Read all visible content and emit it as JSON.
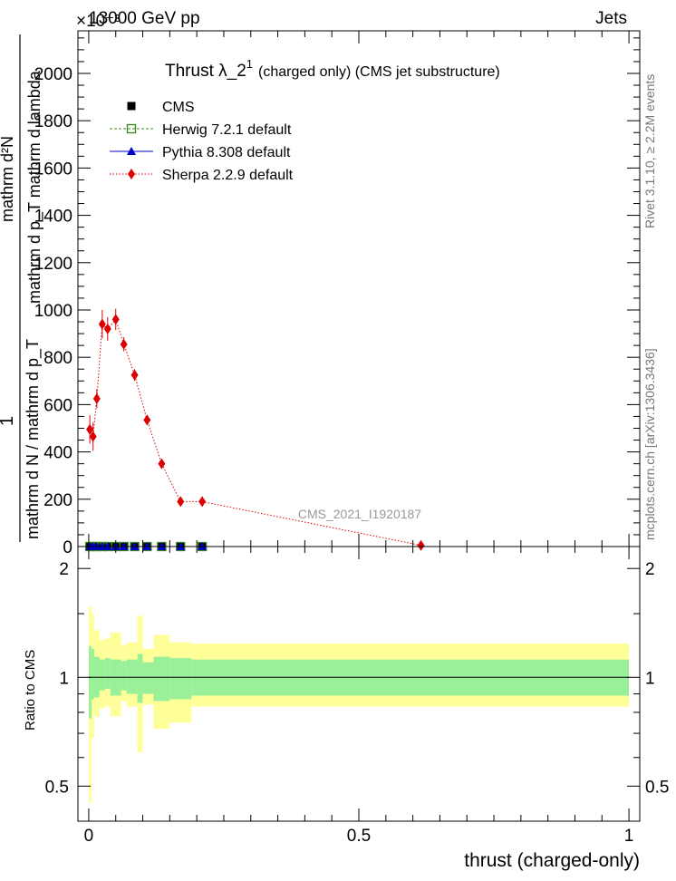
{
  "header": {
    "left": "13000 GeV pp",
    "right": "Jets",
    "exponent": "×10⁻³"
  },
  "side_labels": {
    "rivet": "Rivet 3.1.10, ≥ 2.2M events",
    "mcplots": "mcplots.cern.ch [arXiv:1306.3436]"
  },
  "chart_data": [
    {
      "type": "line",
      "panel": "main",
      "title": "Thrust λ_2",
      "title_sup": "1",
      "title_suffix": "(charged only) (CMS jet substructure)",
      "ylabel_top": "1",
      "ylabel_bottom": "mathrm d N / mathrm d p_T",
      "ylabel_num": "mathrm d²N",
      "ylabel_den": "mathrm d p_T mathrm d lambda",
      "analysis_id": "CMS_2021_I1920187",
      "xlim": [
        -0.02,
        1.02
      ],
      "ylim": [
        0,
        2180
      ],
      "ytick_labels": [
        "0",
        "200",
        "400",
        "600",
        "800",
        "1000",
        "1200",
        "1400",
        "1600",
        "1800",
        "2000"
      ],
      "legend_position": "top-left",
      "series": [
        {
          "name": "CMS",
          "color": "#000000",
          "marker": "square",
          "x": [
            0.002,
            0.008,
            0.015,
            0.025,
            0.035,
            0.05,
            0.065,
            0.085,
            0.108,
            0.135,
            0.17,
            0.21,
            0.615
          ],
          "y": [
            0,
            0,
            0,
            0,
            0,
            0,
            0,
            0,
            0,
            0,
            0,
            0,
            0
          ]
        },
        {
          "name": "Herwig 7.2.1 default",
          "color": "#3a8a1a",
          "marker": "open-square",
          "x": [
            0.002,
            0.008,
            0.015,
            0.025,
            0.035,
            0.05,
            0.065,
            0.085,
            0.108,
            0.135,
            0.17,
            0.21,
            0.615
          ],
          "y": [
            0,
            0,
            0,
            0,
            0,
            0,
            0,
            0,
            0,
            0,
            0,
            0,
            0
          ]
        },
        {
          "name": "Pythia 8.308 default",
          "color": "#0000cc",
          "marker": "triangle",
          "x": [
            0.002,
            0.008,
            0.015,
            0.025,
            0.035,
            0.05,
            0.065,
            0.085,
            0.108,
            0.135,
            0.17,
            0.21,
            0.615
          ],
          "y": [
            0,
            0,
            0,
            0,
            0,
            0,
            0,
            0,
            0,
            0,
            0,
            0,
            0
          ]
        },
        {
          "name": "Sherpa 2.2.9 default",
          "color": "#dd0000",
          "marker": "diamond",
          "x": [
            0.002,
            0.008,
            0.015,
            0.025,
            0.035,
            0.05,
            0.065,
            0.085,
            0.108,
            0.135,
            0.17,
            0.21,
            0.615
          ],
          "y": [
            495,
            465,
            625,
            940,
            920,
            960,
            855,
            725,
            535,
            350,
            190,
            190,
            5
          ],
          "yerr": [
            60,
            60,
            40,
            60,
            50,
            45,
            30,
            25,
            20,
            20,
            10,
            8,
            2
          ]
        }
      ]
    },
    {
      "type": "area",
      "panel": "ratio",
      "ylabel": "Ratio to CMS",
      "xlabel": "thrust (charged-only)",
      "xlim": [
        -0.02,
        1.02
      ],
      "ylim": [
        0.4,
        2.3
      ],
      "log_y": true,
      "ytick_labels": [
        "0.5",
        "1",
        "2"
      ],
      "xtick_labels": [
        "0",
        "0.5",
        "1"
      ],
      "bin_edges": [
        0,
        0.005,
        0.01,
        0.02,
        0.03,
        0.04,
        0.06,
        0.07,
        0.09,
        0.1,
        0.12,
        0.15,
        0.19,
        0.23,
        1.0
      ],
      "band_inner": {
        "color": "#99f099",
        "lo": [
          0.77,
          0.87,
          0.88,
          0.92,
          0.93,
          0.89,
          0.92,
          0.9,
          0.85,
          0.9,
          0.86,
          0.87,
          0.89,
          0.89
        ],
        "hi": [
          1.22,
          1.2,
          1.14,
          1.12,
          1.13,
          1.12,
          1.11,
          1.12,
          1.16,
          1.1,
          1.14,
          1.13,
          1.12,
          1.12
        ]
      },
      "band_outer": {
        "color": "#ffff99",
        "lo": [
          0.45,
          0.68,
          0.78,
          0.82,
          0.83,
          0.78,
          0.86,
          0.83,
          0.62,
          0.84,
          0.72,
          0.75,
          0.83,
          0.83
        ],
        "hi": [
          1.57,
          1.5,
          1.35,
          1.27,
          1.28,
          1.33,
          1.23,
          1.25,
          1.48,
          1.2,
          1.31,
          1.25,
          1.24,
          1.24
        ]
      }
    }
  ]
}
